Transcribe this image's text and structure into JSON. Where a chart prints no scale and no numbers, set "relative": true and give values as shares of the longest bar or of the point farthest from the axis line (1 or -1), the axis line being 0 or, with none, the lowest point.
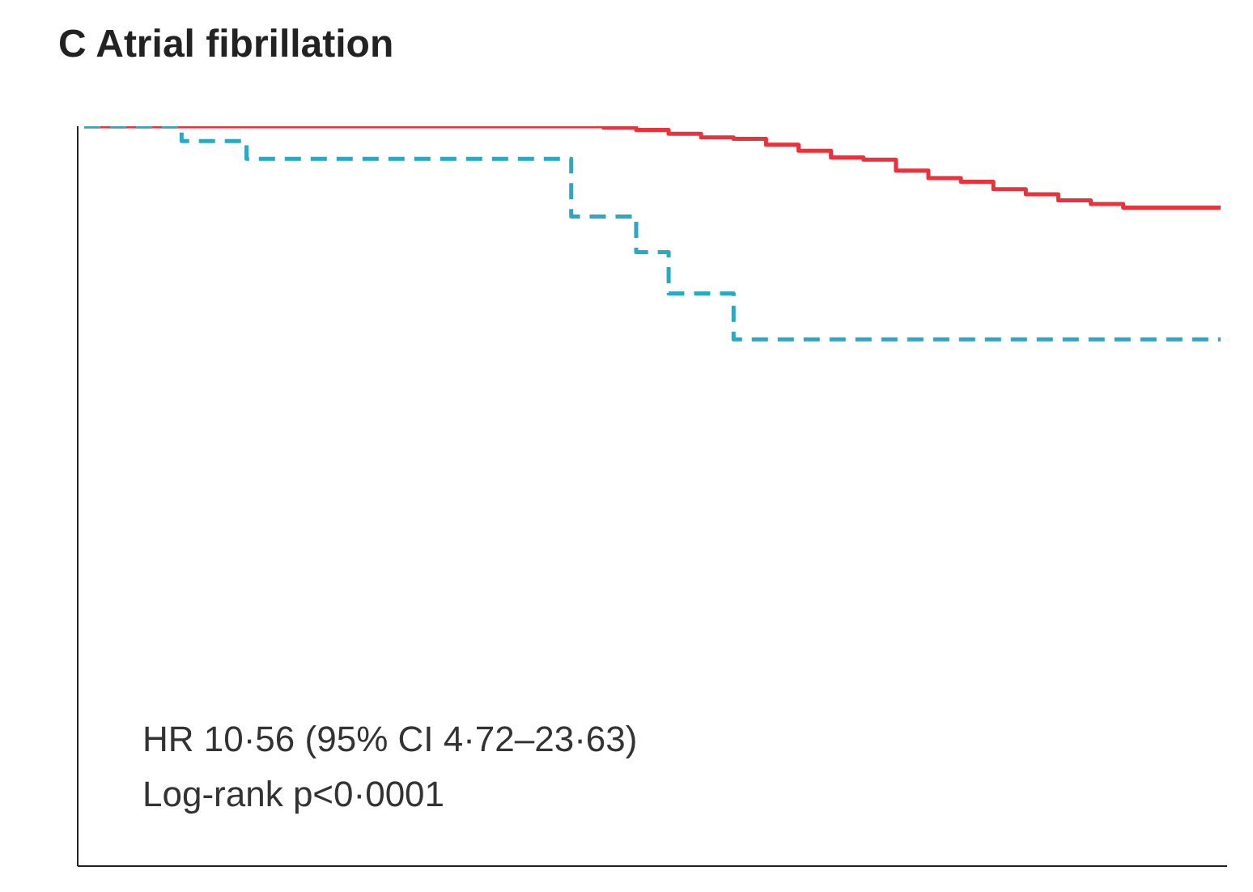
{
  "chart_data": {
    "type": "step",
    "title": "C  Atrial fibrillation",
    "relative": true,
    "categories": [
      null,
      null,
      null,
      null,
      null,
      null,
      null,
      null,
      null,
      null,
      null,
      null,
      null,
      null,
      null,
      null,
      null,
      null,
      null,
      null,
      null,
      null,
      null,
      null,
      null,
      null,
      null,
      null,
      null,
      null,
      null,
      null,
      null,
      null,
      null,
      null
    ],
    "series": [
      {
        "color": "#e8323c",
        "line_style": "solid",
        "values": [
          1,
          1,
          1,
          1,
          1,
          1,
          1,
          1,
          1,
          1,
          1,
          1,
          1,
          1,
          1,
          1,
          0.998,
          0.995,
          0.99,
          0.985,
          0.983,
          0.975,
          0.967,
          0.958,
          0.955,
          0.94,
          0.93,
          0.925,
          0.915,
          0.908,
          0.9,
          0.895,
          0.89,
          0.89,
          0.89,
          0.89
        ]
      },
      {
        "color": "#2ba8c4",
        "line_style": "dashed",
        "values": [
          1,
          1,
          1,
          0.98,
          0.98,
          0.956,
          0.956,
          0.956,
          0.956,
          0.956,
          0.956,
          0.956,
          0.956,
          0.956,
          0.956,
          0.878,
          0.878,
          0.83,
          0.774,
          0.774,
          0.712,
          0.712,
          0.712,
          0.712,
          0.712,
          0.712,
          0.712,
          0.712,
          0.712,
          0.712,
          0.712,
          0.712,
          0.712,
          0.712,
          0.712,
          0.712
        ]
      }
    ],
    "annotations": [
      "HR 10·56 (95% CI 4·72–23·63)",
      "Log-rank p<0·0001"
    ],
    "grid": false
  }
}
